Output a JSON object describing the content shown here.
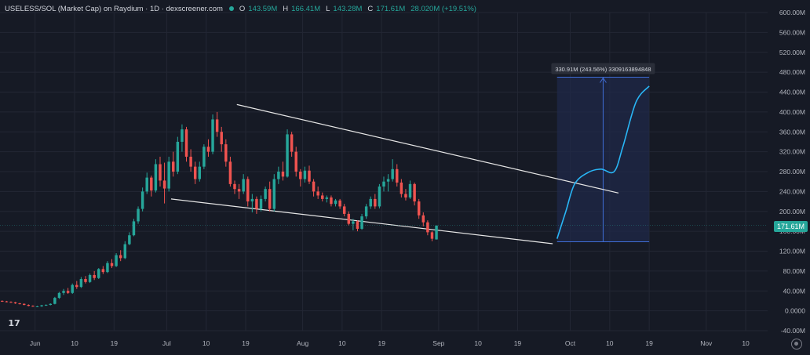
{
  "header": {
    "title": "USELESS/SOL (Market Cap) on Raydium · 1D · dexscreener.com",
    "ohlc": [
      {
        "k": "O",
        "v": "143.59M"
      },
      {
        "k": "H",
        "v": "166.41M"
      },
      {
        "k": "L",
        "v": "143.28M"
      },
      {
        "k": "C",
        "v": "171.61M"
      }
    ],
    "change": "28.020M (+19.51%)"
  },
  "last_price_label": "171.61M",
  "measure_label": "330.91M (243.56%) 3309163894848",
  "colors": {
    "background": "#161a25",
    "grid": "#232734",
    "up": "#26a69a",
    "down": "#ef5350",
    "projection": "#29b6f6",
    "trendline": "#e6e6e6",
    "measure_fill": "#1f2a4a",
    "measure_line": "#3f6dd6",
    "axis_text": "#b2b5be"
  },
  "icons": {
    "logo": "tradingview-logo-icon",
    "settings": "gear-icon",
    "logo_text": "17"
  },
  "chart_data": {
    "type": "candlestick",
    "y_axis": {
      "min": -40,
      "max": 600,
      "unit": "M",
      "ticks": [
        "600.00M",
        "560.00M",
        "520.00M",
        "480.00M",
        "440.00M",
        "400.00M",
        "360.00M",
        "320.00M",
        "280.00M",
        "240.00M",
        "200.00M",
        "160.00M",
        "120.00M",
        "80.00M",
        "40.00M",
        "0.0000",
        "-40.00M"
      ]
    },
    "x_axis": {
      "start_date": "2025-05-24",
      "end_date": "2025-11-15",
      "ticks": [
        {
          "label": "Jun",
          "date": "2025-06-01"
        },
        {
          "label": "10",
          "date": "2025-06-10"
        },
        {
          "label": "19",
          "date": "2025-06-19"
        },
        {
          "label": "Jul",
          "date": "2025-07-01"
        },
        {
          "label": "10",
          "date": "2025-07-10"
        },
        {
          "label": "19",
          "date": "2025-07-19"
        },
        {
          "label": "Aug",
          "date": "2025-08-01"
        },
        {
          "label": "10",
          "date": "2025-08-10"
        },
        {
          "label": "19",
          "date": "2025-08-19"
        },
        {
          "label": "Sep",
          "date": "2025-09-01"
        },
        {
          "label": "10",
          "date": "2025-09-10"
        },
        {
          "label": "19",
          "date": "2025-09-19"
        },
        {
          "label": "Oct",
          "date": "2025-10-01"
        },
        {
          "label": "10",
          "date": "2025-10-10"
        },
        {
          "label": "19",
          "date": "2025-10-19"
        },
        {
          "label": "Nov",
          "date": "2025-11-01"
        },
        {
          "label": "10",
          "date": "2025-11-10"
        }
      ]
    },
    "candles_start_date": "2025-05-24",
    "candles": [
      [
        20,
        21,
        18,
        19
      ],
      [
        19,
        20,
        17,
        18
      ],
      [
        18,
        19,
        16,
        17
      ],
      [
        17,
        18,
        14,
        15
      ],
      [
        15,
        16,
        13,
        14
      ],
      [
        14,
        15,
        11,
        12
      ],
      [
        12,
        13,
        9,
        10
      ],
      [
        10,
        11,
        8,
        9
      ],
      [
        9,
        10,
        8,
        9
      ],
      [
        9,
        12,
        8,
        11
      ],
      [
        11,
        13,
        10,
        12
      ],
      [
        12,
        15,
        11,
        14
      ],
      [
        14,
        28,
        13,
        26
      ],
      [
        26,
        38,
        24,
        36
      ],
      [
        36,
        44,
        32,
        40
      ],
      [
        40,
        46,
        34,
        36
      ],
      [
        36,
        55,
        34,
        52
      ],
      [
        52,
        60,
        44,
        48
      ],
      [
        48,
        68,
        46,
        64
      ],
      [
        64,
        70,
        55,
        58
      ],
      [
        58,
        75,
        56,
        72
      ],
      [
        72,
        80,
        62,
        66
      ],
      [
        66,
        86,
        64,
        84
      ],
      [
        84,
        90,
        74,
        78
      ],
      [
        78,
        100,
        76,
        96
      ],
      [
        96,
        104,
        86,
        90
      ],
      [
        90,
        116,
        88,
        112
      ],
      [
        112,
        122,
        100,
        106
      ],
      [
        106,
        140,
        104,
        134
      ],
      [
        134,
        158,
        132,
        152
      ],
      [
        152,
        185,
        150,
        180
      ],
      [
        180,
        210,
        175,
        205
      ],
      [
        205,
        248,
        200,
        240
      ],
      [
        240,
        278,
        235,
        268
      ],
      [
        268,
        272,
        230,
        242
      ],
      [
        242,
        305,
        238,
        295
      ],
      [
        295,
        310,
        250,
        262
      ],
      [
        262,
        298,
        216,
        246
      ],
      [
        246,
        310,
        240,
        300
      ],
      [
        300,
        320,
        270,
        280
      ],
      [
        280,
        350,
        275,
        340
      ],
      [
        340,
        375,
        320,
        365
      ],
      [
        365,
        370,
        300,
        310
      ],
      [
        310,
        325,
        280,
        290
      ],
      [
        290,
        300,
        255,
        265
      ],
      [
        265,
        300,
        260,
        290
      ],
      [
        290,
        335,
        285,
        330
      ],
      [
        330,
        345,
        310,
        320
      ],
      [
        320,
        395,
        315,
        385
      ],
      [
        385,
        400,
        350,
        360
      ],
      [
        360,
        370,
        320,
        335
      ],
      [
        335,
        345,
        290,
        300
      ],
      [
        300,
        310,
        250,
        255
      ],
      [
        255,
        262,
        235,
        245
      ],
      [
        245,
        255,
        225,
        240
      ],
      [
        240,
        275,
        235,
        265
      ],
      [
        265,
        270,
        210,
        220
      ],
      [
        220,
        235,
        198,
        225
      ],
      [
        225,
        230,
        195,
        205
      ],
      [
        205,
        232,
        200,
        225
      ],
      [
        225,
        250,
        220,
        245
      ],
      [
        245,
        260,
        200,
        205
      ],
      [
        205,
        275,
        200,
        265
      ],
      [
        265,
        290,
        255,
        280
      ],
      [
        280,
        300,
        262,
        270
      ],
      [
        270,
        365,
        268,
        355
      ],
      [
        355,
        360,
        310,
        320
      ],
      [
        320,
        330,
        270,
        280
      ],
      [
        280,
        285,
        250,
        265
      ],
      [
        265,
        290,
        258,
        282
      ],
      [
        282,
        292,
        255,
        260
      ],
      [
        260,
        265,
        230,
        240
      ],
      [
        240,
        250,
        225,
        232
      ],
      [
        232,
        238,
        220,
        225
      ],
      [
        225,
        232,
        218,
        228
      ],
      [
        228,
        232,
        210,
        215
      ],
      [
        215,
        225,
        210,
        222
      ],
      [
        222,
        225,
        205,
        210
      ],
      [
        210,
        215,
        190,
        195
      ],
      [
        195,
        200,
        172,
        175
      ],
      [
        175,
        185,
        162,
        180
      ],
      [
        180,
        182,
        160,
        165
      ],
      [
        165,
        195,
        163,
        190
      ],
      [
        190,
        215,
        185,
        210
      ],
      [
        210,
        230,
        205,
        225
      ],
      [
        225,
        235,
        205,
        210
      ],
      [
        210,
        255,
        206,
        250
      ],
      [
        250,
        270,
        240,
        260
      ],
      [
        260,
        275,
        240,
        265
      ],
      [
        265,
        305,
        260,
        285
      ],
      [
        285,
        295,
        250,
        258
      ],
      [
        258,
        265,
        228,
        235
      ],
      [
        235,
        245,
        222,
        228
      ],
      [
        228,
        262,
        225,
        255
      ],
      [
        255,
        258,
        212,
        220
      ],
      [
        220,
        225,
        185,
        192
      ],
      [
        192,
        198,
        170,
        178
      ],
      [
        178,
        182,
        152,
        158
      ],
      [
        158,
        160,
        140,
        145
      ],
      [
        143.59,
        166.41,
        143.28,
        171.61
      ]
    ],
    "projection": [
      {
        "date": "2025-09-28",
        "value": 145
      },
      {
        "date": "2025-09-30",
        "value": 200
      },
      {
        "date": "2025-10-02",
        "value": 255
      },
      {
        "date": "2025-10-05",
        "value": 278
      },
      {
        "date": "2025-10-08",
        "value": 285
      },
      {
        "date": "2025-10-11",
        "value": 280
      },
      {
        "date": "2025-10-13",
        "value": 330
      },
      {
        "date": "2025-10-16",
        "value": 420
      },
      {
        "date": "2025-10-19",
        "value": 452
      }
    ],
    "trendlines": [
      {
        "from": {
          "date": "2025-07-17",
          "value": 415
        },
        "to": {
          "date": "2025-10-12",
          "value": 237
        }
      },
      {
        "from": {
          "date": "2025-07-02",
          "value": 225
        },
        "to": {
          "date": "2025-09-27",
          "value": 135
        }
      }
    ],
    "measure": {
      "from_date": "2025-09-28",
      "to_date": "2025-10-19",
      "low": 139,
      "high": 470
    }
  }
}
